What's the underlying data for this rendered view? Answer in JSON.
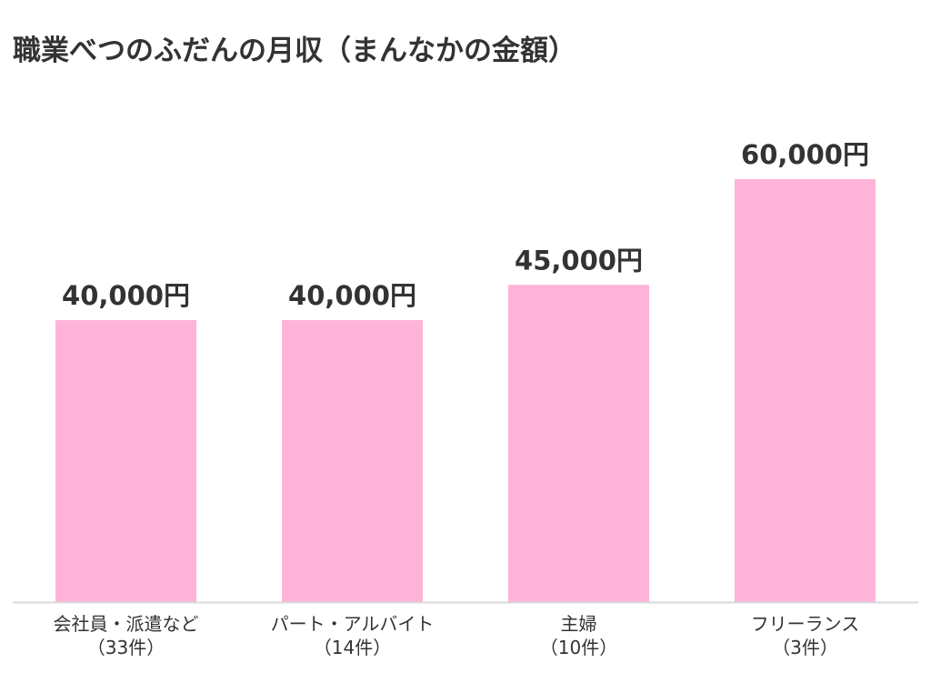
{
  "chart_data": {
    "type": "bar",
    "title": "職業べつのふだんの月収（まんなかの金額）",
    "categories": [
      [
        "会社員・派遣など",
        "（33件）"
      ],
      [
        "パート・アルバイト",
        "（14件）"
      ],
      [
        "主婦",
        "（10件）"
      ],
      [
        "フリーランス",
        "（3件）"
      ]
    ],
    "values": [
      40000,
      40000,
      45000,
      60000
    ],
    "data_labels": [
      "40,000円",
      "40,000円",
      "45,000円",
      "60,000円"
    ],
    "ylim": [
      0,
      60000
    ],
    "grid": false,
    "legend": "none",
    "xlabel": "",
    "ylabel": ""
  },
  "colors": {
    "bar": "#ffb3d9",
    "axis": "#d9d9d9",
    "title": "#333333",
    "value_label": "#333333",
    "category_label": "#333333"
  }
}
